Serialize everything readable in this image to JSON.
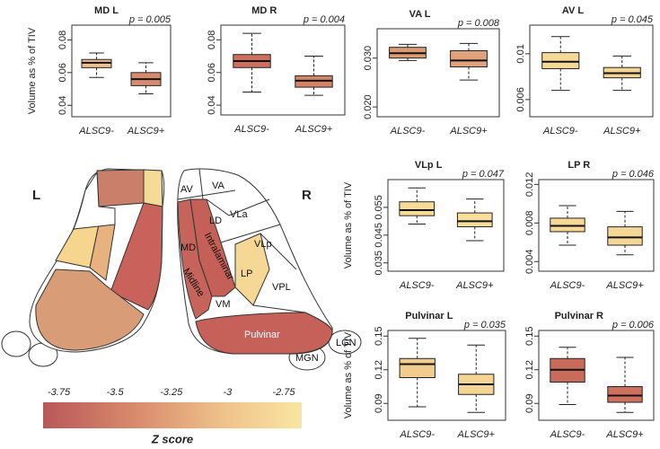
{
  "chart_data": [
    {
      "type": "box",
      "title": "MD L",
      "p_label": "p = 0.005",
      "ylabel": "Volume as % of TIV",
      "categories": [
        "ALSC9-",
        "ALSC9+"
      ],
      "boxes": [
        {
          "whislo": 0.057,
          "q1": 0.063,
          "med": 0.066,
          "q3": 0.068,
          "whishi": 0.072,
          "color": "#efbf8d"
        },
        {
          "whislo": 0.047,
          "q1": 0.052,
          "med": 0.056,
          "q3": 0.06,
          "whishi": 0.066,
          "color": "#d88b6c"
        }
      ],
      "ylim": [
        0.033,
        0.089
      ],
      "yticks": [
        0.04,
        0.06,
        0.08
      ]
    },
    {
      "type": "box",
      "title": "MD R",
      "p_label": "p = 0.004",
      "categories": [
        "ALSC9-",
        "ALSC9+"
      ],
      "boxes": [
        {
          "whislo": 0.048,
          "q1": 0.063,
          "med": 0.067,
          "q3": 0.071,
          "whishi": 0.084,
          "color": "#cc6f5e"
        },
        {
          "whislo": 0.046,
          "q1": 0.051,
          "med": 0.055,
          "q3": 0.058,
          "whishi": 0.07,
          "color": "#d48366"
        }
      ],
      "ylim": [
        0.034,
        0.089
      ],
      "yticks": [
        0.04,
        0.06,
        0.08
      ]
    },
    {
      "type": "box",
      "title": "VA L",
      "p_label": "p = 0.008",
      "categories": [
        "ALSC9-",
        "ALSC9+"
      ],
      "boxes": [
        {
          "whislo": 0.0295,
          "q1": 0.03,
          "med": 0.031,
          "q3": 0.0322,
          "whishi": 0.0328,
          "color": "#dc9a74"
        },
        {
          "whislo": 0.0255,
          "q1": 0.0282,
          "med": 0.0295,
          "q3": 0.0315,
          "whishi": 0.033,
          "color": "#e0a27d"
        }
      ],
      "ylim": [
        0.018,
        0.036
      ],
      "yticks": [
        {
          "value": 0.02,
          "label": "0.020"
        },
        {
          "value": 0.03,
          "label": "0.030"
        }
      ]
    },
    {
      "type": "box",
      "title": "AV L",
      "p_label": "p = 0.045",
      "categories": [
        "ALSC9-",
        "ALSC9+"
      ],
      "boxes": [
        {
          "whislo": 0.0068,
          "q1": 0.0087,
          "med": 0.0093,
          "q3": 0.0101,
          "whishi": 0.0115,
          "color": "#f6d997"
        },
        {
          "whislo": 0.0068,
          "q1": 0.0079,
          "med": 0.0083,
          "q3": 0.0088,
          "whishi": 0.0098,
          "color": "#f3d493"
        }
      ],
      "ylim": [
        0.0045,
        0.0125
      ],
      "yticks": [
        0.006,
        0.01
      ]
    },
    {
      "type": "box",
      "title": "VLp L",
      "p_label": "p = 0.047",
      "ylabel": "Volume as % of TIV",
      "categories": [
        "ALSC9-",
        "ALSC9+"
      ],
      "boxes": [
        {
          "whislo": 0.049,
          "q1": 0.052,
          "med": 0.054,
          "q3": 0.057,
          "whishi": 0.062,
          "color": "#f7dc98"
        },
        {
          "whislo": 0.043,
          "q1": 0.048,
          "med": 0.05,
          "q3": 0.053,
          "whishi": 0.058,
          "color": "#f7de9b"
        }
      ],
      "ylim": [
        0.032,
        0.065
      ],
      "yticks": [
        0.035,
        0.045,
        0.055
      ]
    },
    {
      "type": "box",
      "title": "LP R",
      "p_label": "p = 0.046",
      "categories": [
        "ALSC9-",
        "ALSC9+"
      ],
      "boxes": [
        {
          "whislo": 0.0057,
          "q1": 0.0071,
          "med": 0.0077,
          "q3": 0.0085,
          "whishi": 0.0098,
          "color": "#f6d997"
        },
        {
          "whislo": 0.0047,
          "q1": 0.0057,
          "med": 0.0065,
          "q3": 0.0076,
          "whishi": 0.0092,
          "color": "#f5d795"
        }
      ],
      "ylim": [
        0.003,
        0.0125
      ],
      "yticks": [
        0.004,
        0.008,
        0.012
      ]
    },
    {
      "type": "box",
      "title": "Pulvinar L",
      "p_label": "p = 0.035",
      "ylabel": "Volume as % of TIV",
      "categories": [
        "ALSC9-",
        "ALSC9+"
      ],
      "boxes": [
        {
          "whislo": 0.087,
          "q1": 0.113,
          "med": 0.125,
          "q3": 0.13,
          "whishi": 0.148,
          "color": "#f2cb8f"
        },
        {
          "whislo": 0.082,
          "q1": 0.098,
          "med": 0.107,
          "q3": 0.116,
          "whishi": 0.142,
          "color": "#f5d596"
        }
      ],
      "ylim": [
        0.075,
        0.155
      ],
      "yticks": [
        0.09,
        0.12,
        0.15
      ]
    },
    {
      "type": "box",
      "title": "Pulvinar R",
      "p_label": "p = 0.006",
      "categories": [
        "ALSC9-",
        "ALSC9+"
      ],
      "boxes": [
        {
          "whislo": 0.089,
          "q1": 0.109,
          "med": 0.12,
          "q3": 0.13,
          "whishi": 0.14,
          "color": "#c96b5b"
        },
        {
          "whislo": 0.082,
          "q1": 0.091,
          "med": 0.097,
          "q3": 0.105,
          "whishi": 0.131,
          "color": "#cd705d"
        }
      ],
      "ylim": [
        0.075,
        0.155
      ],
      "yticks": [
        0.09,
        0.12,
        0.15
      ]
    }
  ],
  "diagram": {
    "left_label": "L",
    "right_label": "R",
    "regions": [
      "AV",
      "VA",
      "LD",
      "VLa",
      "MD",
      "Intralaminar",
      "VLp",
      "LP",
      "VPL",
      "Midline",
      "VM",
      "Pulvinar",
      "LGN",
      "MGN"
    ],
    "colorbar": {
      "lim": [
        -3.82,
        -2.67
      ],
      "ticks": [
        -3.75,
        -3.5,
        -3.25,
        -3,
        -2.75
      ],
      "label": "Z score"
    }
  }
}
